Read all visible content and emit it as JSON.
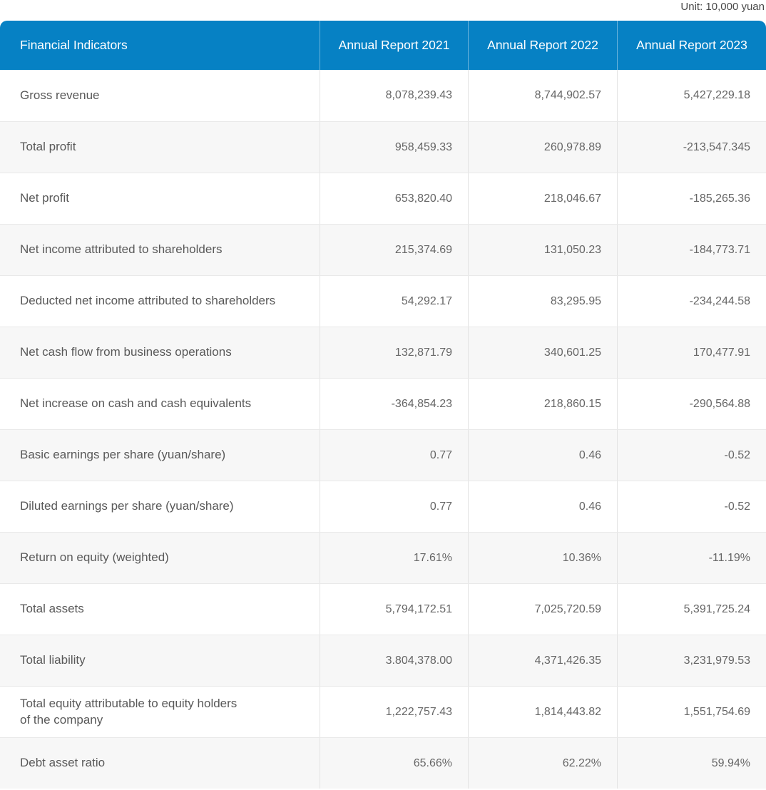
{
  "unit_note": "Unit: 10,000 yuan",
  "colors": {
    "header_bg": "#0681C4",
    "header_text": "#ffffff",
    "row_bg": "#ffffff",
    "row_alt_bg": "#f7f7f7",
    "row_border": "#e9e9e9",
    "column_border": "#e4e4e4",
    "label_text": "#595959",
    "value_text": "#666666"
  },
  "chart_data": {
    "type": "table",
    "unit_note": "Unit: 10,000 yuan",
    "columns": [
      "Financial Indicators",
      "Annual Report 2021",
      "Annual Report 2022",
      "Annual Report 2023"
    ],
    "rows": [
      {
        "label": "Gross revenue",
        "values": [
          "8,078,239.43",
          "8,744,902.57",
          "5,427,229.18"
        ]
      },
      {
        "label": "Total profit",
        "values": [
          "958,459.33",
          "260,978.89",
          "-213,547.345"
        ]
      },
      {
        "label": "Net profit",
        "values": [
          "653,820.40",
          "218,046.67",
          "-185,265.36"
        ]
      },
      {
        "label": "Net income attributed to shareholders",
        "values": [
          "215,374.69",
          "131,050.23",
          "-184,773.71"
        ]
      },
      {
        "label": "Deducted net income attributed to shareholders",
        "values": [
          "54,292.17",
          "83,295.95",
          "-234,244.58"
        ]
      },
      {
        "label": "Net cash flow from business operations",
        "values": [
          "132,871.79",
          "340,601.25",
          "170,477.91"
        ]
      },
      {
        "label": "Net increase on cash and cash equivalents",
        "values": [
          "-364,854.23",
          "218,860.15",
          "-290,564.88"
        ]
      },
      {
        "label": "Basic earnings per share (yuan/share)",
        "values": [
          "0.77",
          "0.46",
          "-0.52"
        ]
      },
      {
        "label": "Diluted earnings per share (yuan/share)",
        "values": [
          "0.77",
          "0.46",
          "-0.52"
        ]
      },
      {
        "label": "Return on equity (weighted)",
        "values": [
          "17.61%",
          "10.36%",
          "-11.19%"
        ]
      },
      {
        "label": "Total assets",
        "values": [
          "5,794,172.51",
          "7,025,720.59",
          "5,391,725.24"
        ]
      },
      {
        "label": "Total liability",
        "values": [
          "3.804,378.00",
          "4,371,426.35",
          "3,231,979.53"
        ]
      },
      {
        "label": "Total equity attributable to equity holders\nof the company",
        "values": [
          "1,222,757.43",
          "1,814,443.82",
          "1,551,754.69"
        ]
      },
      {
        "label": "Debt asset ratio",
        "values": [
          "65.66%",
          "62.22%",
          "59.94%"
        ]
      }
    ]
  }
}
